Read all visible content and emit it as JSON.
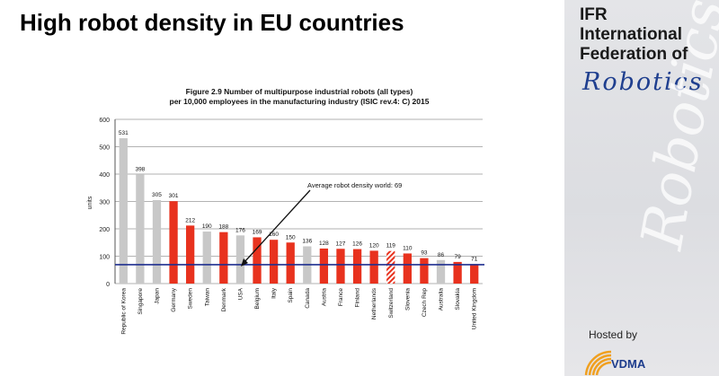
{
  "slide": {
    "title": "High robot density in EU countries"
  },
  "brand": {
    "line1": "IFR",
    "line2": "International",
    "line3": "Federation of",
    "robotics": "Robotics",
    "watermark": "Robotics",
    "hosted_by": "Hosted by",
    "vdma": "VDMA"
  },
  "chart_data": {
    "type": "bar",
    "title_line1": "Figure 2.9 Number of multipurpose industrial robots (all types)",
    "title_line2": "per 10,000 employees in the manufacturing industry (ISIC rev.4: C) 2015",
    "ylabel": "units",
    "ylim": [
      0,
      600
    ],
    "yticks": [
      0,
      100,
      200,
      300,
      400,
      500,
      600
    ],
    "categories": [
      "Republic of Korea",
      "Singapore",
      "Japan",
      "Germany",
      "Sweden",
      "Taiwan",
      "Denmark",
      "USA",
      "Belgium",
      "Italy",
      "Spain",
      "Canada",
      "Austria",
      "France",
      "Finland",
      "Netherlands",
      "Switzerland",
      "Slovenia",
      "Czech Rep",
      "Australia",
      "Slovakia",
      "United Kingdom"
    ],
    "values": [
      531,
      398,
      305,
      301,
      212,
      190,
      188,
      176,
      169,
      160,
      150,
      136,
      128,
      127,
      126,
      120,
      119,
      110,
      93,
      86,
      79,
      71
    ],
    "bar_colors": [
      "#c8c8c8",
      "#c8c8c8",
      "#c8c8c8",
      "#e8321e",
      "#e8321e",
      "#c8c8c8",
      "#e8321e",
      "#c8c8c8",
      "#e8321e",
      "#e8321e",
      "#e8321e",
      "#c8c8c8",
      "#e8321e",
      "#e8321e",
      "#e8321e",
      "#e8321e",
      "hatch",
      "#e8321e",
      "#e8321e",
      "#c8c8c8",
      "#e8321e",
      "#e8321e"
    ],
    "average": 69,
    "average_label": "Average robot density world: 69",
    "colors": {
      "eu": "#e8321e",
      "non_eu": "#c8c8c8",
      "average_line": "#1f2f8f"
    }
  }
}
